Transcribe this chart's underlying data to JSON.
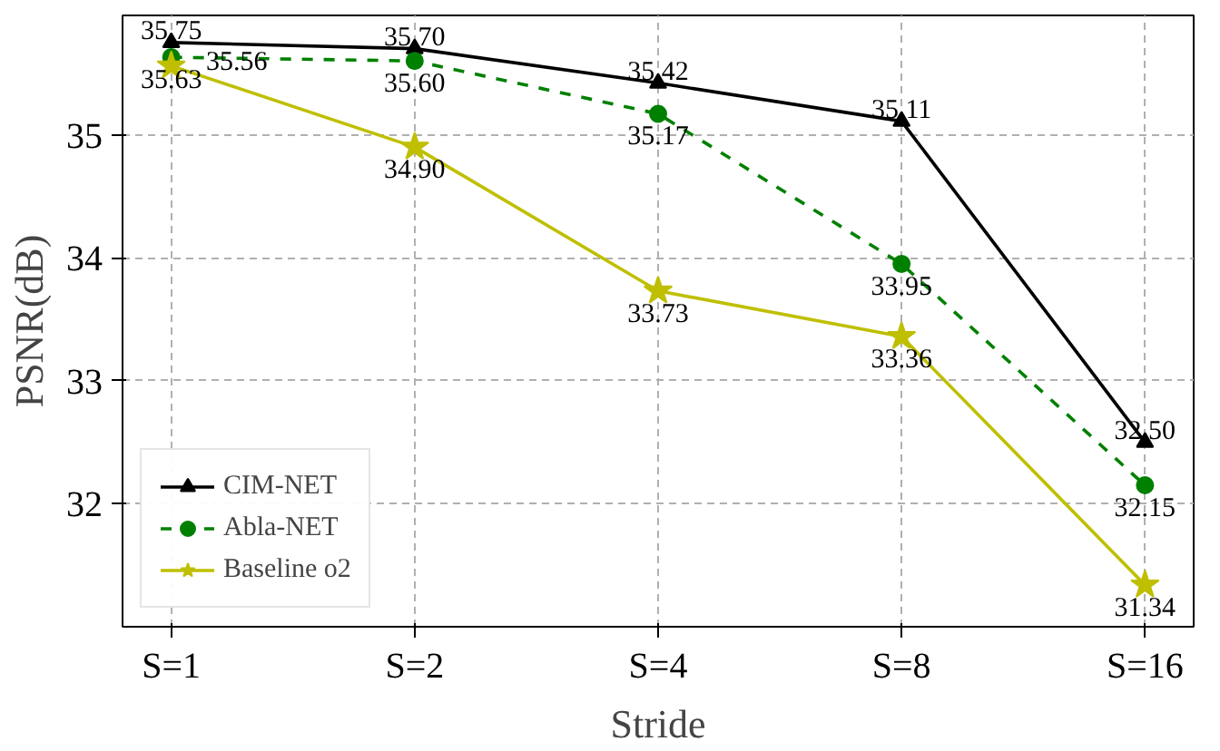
{
  "chart_data": {
    "type": "line",
    "xlabel": "Stride",
    "ylabel": "PSNR(dB)",
    "categories": [
      "S=1",
      "S=2",
      "S=4",
      "S=8",
      "S=16"
    ],
    "series": [
      {
        "name": "CIM-NET",
        "color": "#000000",
        "values": [
          35.75,
          35.7,
          35.42,
          35.11,
          32.5
        ],
        "value_labels": [
          "35.75",
          "35.70",
          "35.42",
          "35.11",
          "32.50"
        ],
        "marker": "triangle",
        "line_style": "solid"
      },
      {
        "name": "Abla-NET",
        "color": "#008000",
        "values": [
          35.63,
          35.6,
          35.17,
          33.95,
          32.15
        ],
        "value_labels": [
          "35.63",
          "35.60",
          "35.17",
          "33.95",
          "32.15"
        ],
        "marker": "circle",
        "line_style": "dashed"
      },
      {
        "name": "Baseline o2",
        "color": "#bfbf00",
        "values": [
          35.56,
          34.9,
          33.73,
          33.36,
          31.34
        ],
        "value_labels": [
          "35.56",
          "34.90",
          "33.73",
          "33.36",
          "31.34"
        ],
        "marker": "star",
        "line_style": "solid"
      }
    ],
    "ylim": [
      31.0,
      35.97
    ],
    "yticks": [
      32,
      33,
      34,
      35
    ],
    "grid": true,
    "legend": "bottom left",
    "data_labels": true
  }
}
